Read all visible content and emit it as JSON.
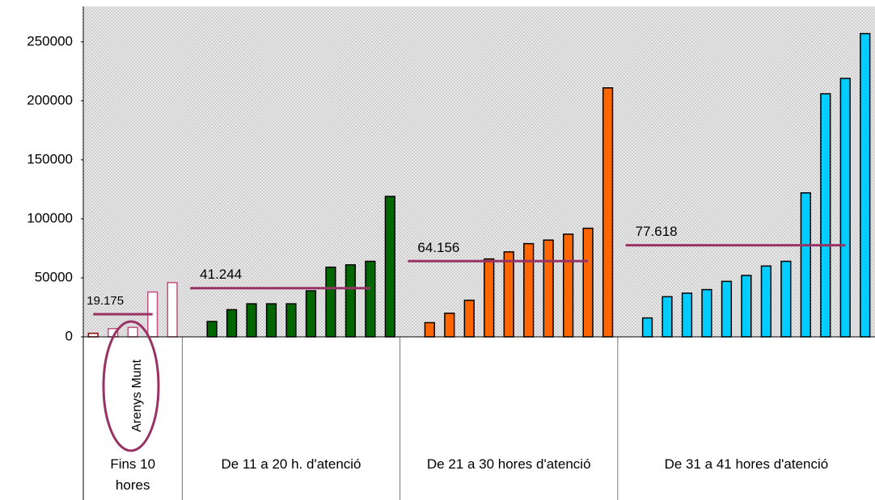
{
  "chart_data": {
    "type": "bar",
    "ylim": [
      0,
      280000
    ],
    "yticks": [
      0,
      50000,
      100000,
      150000,
      200000,
      250000
    ],
    "mean_color": "#993366",
    "groups": [
      {
        "name": "Fins 10 hores",
        "color": "#c0507f",
        "fill": "#ffffff",
        "values": [
          3000,
          7000,
          8000,
          38000,
          46000
        ],
        "mean": 19175,
        "mean_label": "19.175"
      },
      {
        "name": "De 11 a 20 h. d'atenció",
        "color": "#000000",
        "fill": "#006600",
        "values": [
          null,
          13000,
          23000,
          28000,
          28000,
          28000,
          39000,
          59000,
          61000,
          64000,
          119000
        ],
        "mean": 41244,
        "mean_label": "41.244"
      },
      {
        "name": "De 21 a 30 hores d'atenció",
        "color": "#000000",
        "fill": "#ff6600",
        "values": [
          null,
          12000,
          20000,
          31000,
          66000,
          72000,
          79000,
          82000,
          87000,
          92000,
          211000
        ],
        "mean": 64156,
        "mean_label": "64.156"
      },
      {
        "name": "De 31 a 41 hores d'atenció",
        "color": "#000000",
        "fill": "#00ccff",
        "values": [
          null,
          16000,
          34000,
          37000,
          40000,
          47000,
          52000,
          60000,
          64000,
          122000,
          206000,
          219000,
          257000
        ],
        "mean": 77618,
        "mean_label": "77.618"
      }
    ],
    "annotation": "Arenys Munt"
  }
}
